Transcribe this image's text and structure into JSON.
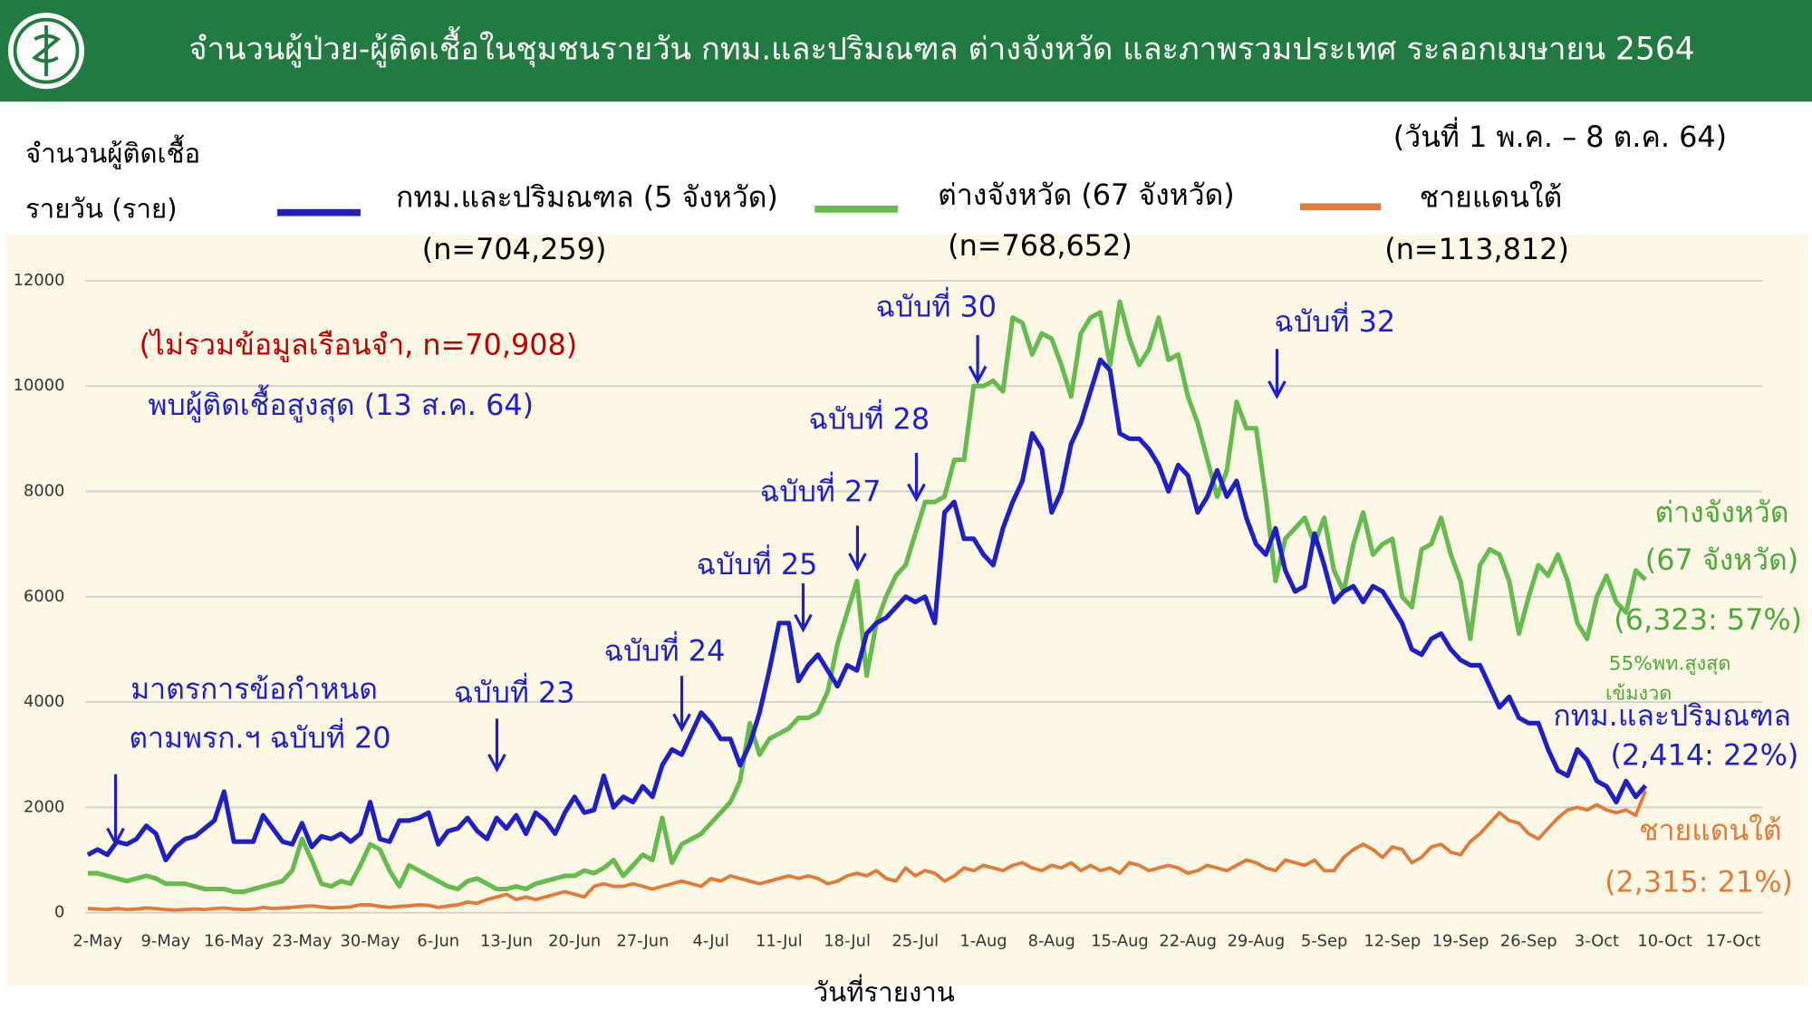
{
  "chart_data": {
    "type": "line",
    "title": "จำนวนผู้ป่วย-ผู้ติดเชื้อในชุมชนรายวัน กทม.และปริมณฑล ต่างจังหวัด และภาพรวมประเทศ ระลอกเมษายน 2564",
    "ylabel": [
      "จำนวนผู้ติดเชื้อ",
      "รายวัน (ราย)"
    ],
    "xlabel": "วันที่รายงาน",
    "annotations": [
      "(วันที่ 1 พ.ค. – 8 ต.ค. 64)",
      "(ไม่รวมข้อมูลเรือนจำ, n=70,908)",
      "พบผู้ติดเชื้อสูงสุด (13 ส.ค. 64)",
      "มาตรการข้อกำหนด",
      "ตามพรก.ฯ ฉบับที่ 20",
      "ฉบับที่ 23",
      "ฉบับที่ 24",
      "ฉบับที่ 25",
      "ฉบับที่ 27",
      "ฉบับที่ 28",
      "ฉบับที่ 30",
      "ฉบับที่ 32",
      "ต่างจังหวัด",
      "(67 จังหวัด)",
      "(6,323: 57%)",
      "55%พท.สูงสุด",
      "เข้มงวด",
      "กทม.และปริมณฑล",
      "(2,414: 22%)",
      "ชายแดนใต้",
      "(2,315: 21%)"
    ],
    "categories": [
      null,
      "2-May",
      null,
      null,
      null,
      null,
      null,
      null,
      "9-May",
      null,
      null,
      null,
      null,
      null,
      null,
      "16-May",
      null,
      null,
      null,
      null,
      null,
      null,
      "23-May",
      null,
      null,
      null,
      null,
      null,
      null,
      "30-May",
      null,
      null,
      null,
      null,
      null,
      null,
      "6-Jun",
      null,
      null,
      null,
      null,
      null,
      null,
      "13-Jun",
      null,
      null,
      null,
      null,
      null,
      null,
      "20-Jun",
      null,
      null,
      null,
      null,
      null,
      null,
      "27-Jun",
      null,
      null,
      null,
      null,
      null,
      null,
      "4-Jul",
      null,
      null,
      null,
      null,
      null,
      null,
      "11-Jul",
      null,
      null,
      null,
      null,
      null,
      null,
      "18-Jul",
      null,
      null,
      null,
      null,
      null,
      null,
      "25-Jul",
      null,
      null,
      null,
      null,
      null,
      null,
      "1-Aug",
      null,
      null,
      null,
      null,
      null,
      null,
      "8-Aug",
      null,
      null,
      null,
      null,
      null,
      null,
      "15-Aug",
      null,
      null,
      null,
      null,
      null,
      null,
      "22-Aug",
      null,
      null,
      null,
      null,
      null,
      null,
      "29-Aug",
      null,
      null,
      null,
      null,
      null,
      null,
      "5-Sep",
      null,
      null,
      null,
      null,
      null,
      null,
      "12-Sep",
      null,
      null,
      null,
      null,
      null,
      null,
      "19-Sep",
      null,
      null,
      null,
      null,
      null,
      null,
      "26-Sep",
      null,
      null,
      null,
      null,
      null,
      null,
      "3-Oct",
      null,
      null,
      null,
      null,
      null,
      null,
      "10-Oct",
      null,
      null,
      null,
      null,
      null,
      null,
      "17-Oct",
      null,
      null,
      null
    ],
    "series": [
      {
        "name": "กทม.และปริมณฑล (5 จังหวัด)",
        "total": "(n=704,259)",
        "color": "#1f1fc4",
        "values": [
          1100,
          1200,
          1100,
          1350,
          1300,
          1400,
          1650,
          1500,
          1000,
          1250,
          1400,
          1450,
          1600,
          1750,
          2300,
          1350,
          1350,
          1350,
          1850,
          1600,
          1350,
          1300,
          1700,
          1250,
          1450,
          1400,
          1500,
          1350,
          1500,
          2100,
          1400,
          1350,
          1750,
          1750,
          1800,
          1900,
          1300,
          1550,
          1600,
          1800,
          1550,
          1400,
          1800,
          1600,
          1850,
          1500,
          1900,
          1750,
          1500,
          1900,
          2200,
          1900,
          1950,
          2600,
          2000,
          2200,
          2100,
          2400,
          2200,
          2800,
          3100,
          3000,
          3400,
          3800,
          3600,
          3300,
          3300,
          2800,
          3200,
          3800,
          4600,
          5500,
          5500,
          4400,
          4700,
          4900,
          4600,
          4300,
          4700,
          4600,
          5300,
          5500,
          5600,
          5800,
          6000,
          5900,
          6000,
          5500,
          7600,
          7800,
          7100,
          7100,
          6800,
          6600,
          7300,
          7800,
          8200,
          9100,
          8800,
          7600,
          8000,
          8900,
          9300,
          9900,
          10500,
          10300,
          9100,
          9000,
          9000,
          8800,
          8500,
          8000,
          8500,
          8300,
          7600,
          7900,
          8400,
          7900,
          8200,
          7500,
          7000,
          6800,
          7300,
          6500,
          6100,
          6200,
          7200,
          6600,
          5900,
          6100,
          6200,
          5900,
          6200,
          6100,
          5800,
          5500,
          5000,
          4900,
          5200,
          5300,
          5000,
          4800,
          4700,
          4700,
          4300,
          3900,
          4100,
          3700,
          3600,
          3600,
          3100,
          2700,
          2600,
          3100,
          2900,
          2500,
          2400,
          2100,
          2500,
          2200,
          2414,
          null,
          null,
          null,
          null,
          null,
          null,
          null,
          null,
          null,
          null,
          null,
          null
        ]
      },
      {
        "name": "ต่างจังหวัด (67 จังหวัด)",
        "total": "(n=768,652)",
        "color": "#66bb4e",
        "values": [
          750,
          750,
          700,
          650,
          600,
          650,
          700,
          650,
          550,
          550,
          550,
          500,
          450,
          450,
          450,
          400,
          400,
          450,
          500,
          550,
          600,
          800,
          1400,
          1000,
          550,
          500,
          600,
          550,
          900,
          1300,
          1200,
          800,
          500,
          900,
          800,
          700,
          600,
          500,
          450,
          600,
          650,
          550,
          450,
          450,
          500,
          450,
          550,
          600,
          650,
          700,
          700,
          800,
          750,
          850,
          1000,
          700,
          900,
          1100,
          1000,
          1800,
          950,
          1300,
          1400,
          1500,
          1700,
          1900,
          2100,
          2500,
          3600,
          3000,
          3300,
          3400,
          3500,
          3700,
          3700,
          3800,
          4200,
          5100,
          5700,
          6300,
          4500,
          5500,
          6000,
          6400,
          6600,
          7200,
          7800,
          7800,
          7900,
          8600,
          8600,
          10000,
          10000,
          10100,
          9900,
          11300,
          11200,
          10600,
          11000,
          10900,
          10400,
          9800,
          11000,
          11300,
          11400,
          10400,
          11600,
          10900,
          10400,
          10700,
          11300,
          10500,
          10600,
          9800,
          9300,
          8600,
          7900,
          8400,
          9700,
          9200,
          9200,
          7900,
          6300,
          7100,
          7300,
          7500,
          7000,
          7500,
          6500,
          6100,
          7000,
          7600,
          6800,
          7000,
          7100,
          6000,
          5800,
          6900,
          7000,
          7500,
          6800,
          6300,
          5200,
          6600,
          6900,
          6800,
          6300,
          5300,
          6000,
          6600,
          6400,
          6800,
          6300,
          5500,
          5200,
          6000,
          6400,
          5900,
          5700,
          6500,
          6323,
          null,
          null,
          null,
          null,
          null,
          null,
          null,
          null,
          null,
          null,
          null,
          null
        ]
      },
      {
        "name": "ชายแดนใต้",
        "total": "(n=113,812)",
        "color": "#e07b39",
        "values": [
          80,
          70,
          60,
          80,
          60,
          70,
          90,
          80,
          60,
          50,
          60,
          70,
          60,
          80,
          90,
          70,
          60,
          70,
          100,
          80,
          90,
          100,
          120,
          130,
          110,
          90,
          100,
          110,
          150,
          150,
          120,
          100,
          120,
          130,
          150,
          140,
          100,
          130,
          150,
          200,
          180,
          250,
          300,
          350,
          250,
          300,
          250,
          300,
          350,
          400,
          350,
          300,
          500,
          550,
          500,
          500,
          550,
          500,
          450,
          500,
          550,
          600,
          550,
          500,
          650,
          600,
          700,
          650,
          600,
          550,
          600,
          650,
          700,
          650,
          700,
          650,
          550,
          600,
          700,
          750,
          700,
          800,
          650,
          600,
          850,
          700,
          800,
          750,
          600,
          700,
          850,
          800,
          900,
          850,
          800,
          900,
          950,
          850,
          800,
          900,
          850,
          950,
          800,
          900,
          800,
          850,
          750,
          950,
          900,
          800,
          850,
          900,
          850,
          750,
          800,
          900,
          850,
          800,
          900,
          1000,
          950,
          850,
          800,
          1000,
          950,
          900,
          1000,
          800,
          800,
          1050,
          1200,
          1300,
          1200,
          1050,
          1250,
          1200,
          950,
          1050,
          1250,
          1300,
          1150,
          1100,
          1350,
          1500,
          1700,
          1900,
          1750,
          1700,
          1500,
          1400,
          1600,
          1800,
          1950,
          2000,
          1950,
          2050,
          1950,
          1900,
          1950,
          1850,
          2315,
          null,
          null,
          null,
          null,
          null,
          null,
          null,
          null,
          null,
          null,
          null,
          null
        ]
      }
    ],
    "ylim": [
      0,
      12000
    ],
    "yticks": [
      0,
      2000,
      4000,
      6000,
      8000,
      10000,
      12000
    ],
    "grid": true
  }
}
